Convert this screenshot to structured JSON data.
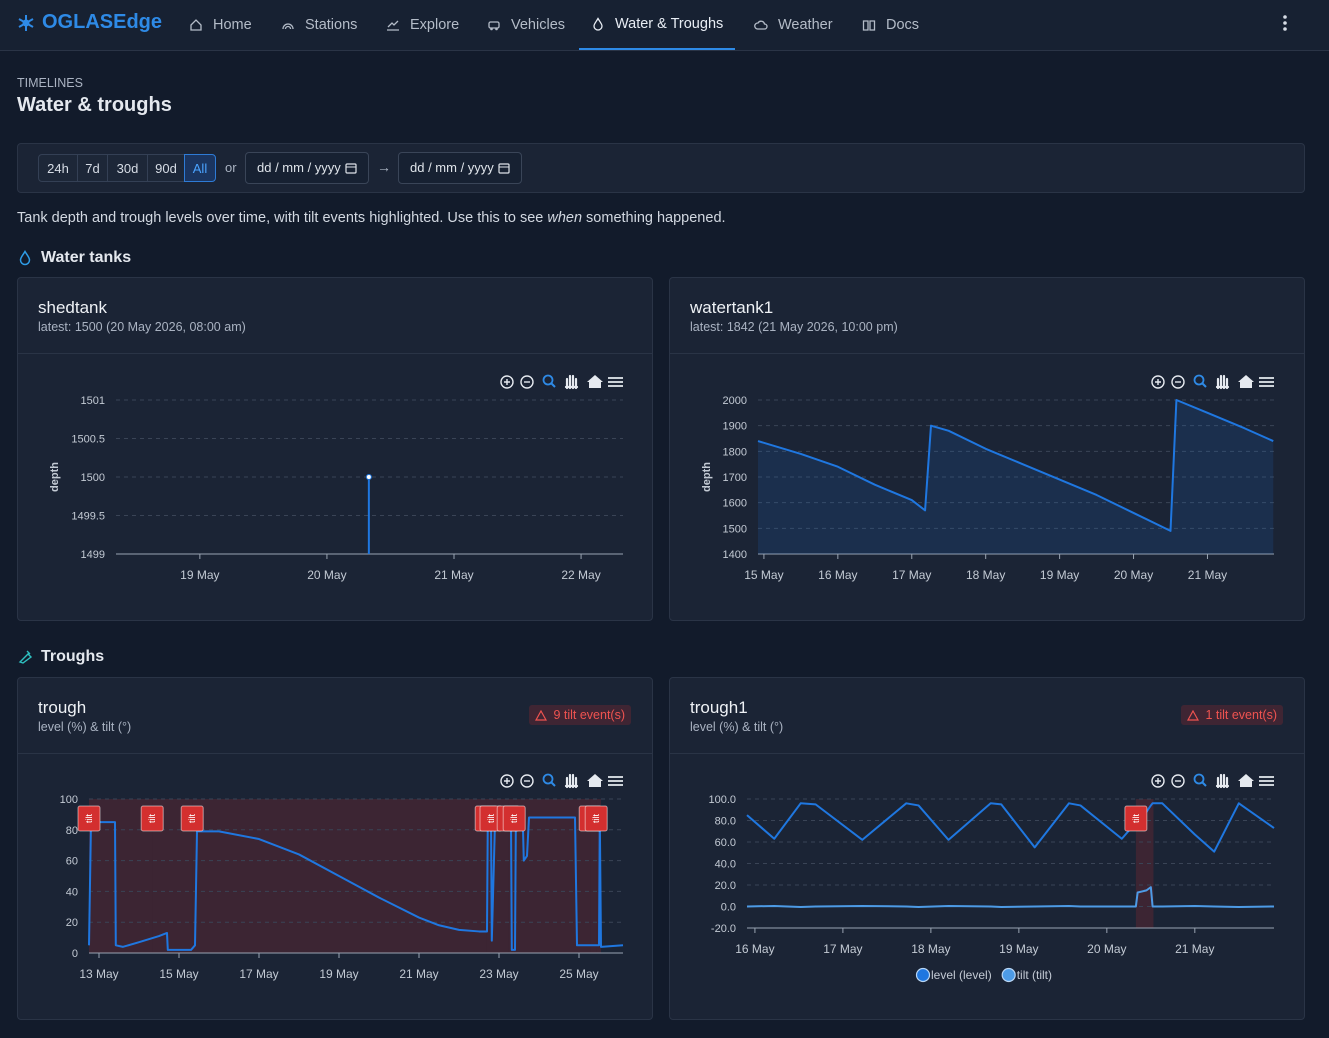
{
  "nav": {
    "brand": "OGLASEdge",
    "items": [
      "Home",
      "Stations",
      "Explore",
      "Vehicles",
      "Water & Troughs",
      "Weather",
      "Docs"
    ]
  },
  "header": {
    "eyebrow": "TIMELINES",
    "title": "Water & troughs"
  },
  "filters": {
    "ranges": [
      "24h",
      "7d",
      "30d",
      "90d",
      "All"
    ],
    "or": "or",
    "date_placeholder": "dd / mm / yyyy",
    "arrow": "→"
  },
  "description": {
    "before": "Tank depth and trough levels over time, with tilt events highlighted. Use this to see ",
    "emphasis": "when",
    "after": " something happened."
  },
  "sections": {
    "tanks": "Water tanks",
    "troughs": "Troughs"
  },
  "chart_data": [
    {
      "type": "area",
      "title": "shedtank",
      "subtitle": "latest: 1500 (20 May 2026, 08:00 am)",
      "y_label": "depth",
      "color": "#1f77e0",
      "markers": true,
      "grid": true,
      "x": [
        20.33
      ],
      "values": [
        1500
      ],
      "xlim": [
        18.34,
        22.33
      ],
      "xticks": [
        {
          "value": 19,
          "label": "19 May"
        },
        {
          "value": 20,
          "label": "20 May"
        },
        {
          "value": 21,
          "label": "21 May"
        },
        {
          "value": 22,
          "label": "22 May"
        }
      ],
      "ylim": [
        1499,
        1501
      ],
      "yticks": [
        1499,
        1499.5,
        1500,
        1500.5,
        1501
      ]
    },
    {
      "type": "area",
      "title": "watertank1",
      "subtitle": "latest: 1842 (21 May 2026, 10:00 pm)",
      "y_label": "depth",
      "color": "#1f77e0",
      "grid": true,
      "x": [
        14.92,
        15.5,
        16,
        16.5,
        17,
        17.18,
        17.26,
        17.5,
        18,
        18.5,
        19,
        19.5,
        20,
        20.5,
        20.58,
        21,
        21.5,
        21.89
      ],
      "values": [
        1840,
        1790,
        1740,
        1670,
        1610,
        1570,
        1900,
        1880,
        1810,
        1750,
        1690,
        1630,
        1560,
        1490,
        2000,
        1950,
        1890,
        1840
      ],
      "xlim": [
        14.92,
        21.9
      ],
      "xticks": [
        {
          "value": 15,
          "label": "15 May"
        },
        {
          "value": 16,
          "label": "16 May"
        },
        {
          "value": 17,
          "label": "17 May"
        },
        {
          "value": 18,
          "label": "18 May"
        },
        {
          "value": 19,
          "label": "19 May"
        },
        {
          "value": 20,
          "label": "20 May"
        },
        {
          "value": 21,
          "label": "21 May"
        }
      ],
      "ylim": [
        1400,
        2000
      ],
      "yticks": [
        1400,
        1500,
        1600,
        1700,
        1800,
        1900,
        2000
      ]
    },
    {
      "type": "line",
      "title": "trough",
      "subtitle": "level (%) & tilt (°)",
      "badge": "9 tilt event(s)",
      "color": "#1f77e0",
      "grid": true,
      "event_label": "tilt",
      "event_color": "#d32f2f",
      "tilt_events": [
        {
          "start": 12.75,
          "end": 14.33
        },
        {
          "start": 14.33,
          "end": 15.33
        },
        {
          "start": 15.33,
          "end": 22.68
        },
        {
          "start": 22.68,
          "end": 22.8
        },
        {
          "start": 22.8,
          "end": 23.23
        },
        {
          "start": 23.23,
          "end": 23.38
        },
        {
          "start": 23.38,
          "end": 25.28
        },
        {
          "start": 25.28,
          "end": 25.43
        },
        {
          "start": 25.43,
          "end": 25.55
        }
      ],
      "x": [
        12.75,
        12.8,
        13.4,
        13.42,
        13.6,
        14,
        14.5,
        14.7,
        14.72,
        15.3,
        15.4,
        15.45,
        16,
        17,
        18,
        19,
        20,
        21,
        21.5,
        22,
        22.5,
        22.7,
        22.72,
        22.8,
        22.82,
        22.9,
        23.3,
        23.32,
        23.4,
        23.42,
        23.6,
        23.62,
        23.7,
        23.75,
        24.9,
        24.95,
        25.5,
        25.52,
        25.55,
        26.1
      ],
      "values": [
        5,
        85,
        85,
        5,
        4,
        7,
        11,
        13,
        2,
        2,
        5,
        79,
        79,
        74,
        64,
        50,
        36,
        23,
        18,
        15,
        14,
        14,
        88,
        88,
        8,
        85,
        85,
        2,
        2,
        80,
        80,
        60,
        63,
        88,
        88,
        5,
        5,
        88,
        4,
        5
      ],
      "xlim": [
        12.75,
        26.1
      ],
      "xticks": [
        {
          "value": 13,
          "label": "13 May"
        },
        {
          "value": 15,
          "label": "15 May"
        },
        {
          "value": 17,
          "label": "17 May"
        },
        {
          "value": 19,
          "label": "19 May"
        },
        {
          "value": 21,
          "label": "21 May"
        },
        {
          "value": 23,
          "label": "23 May"
        },
        {
          "value": 25,
          "label": "25 May"
        }
      ],
      "ylim": [
        0,
        100
      ],
      "yticks": [
        0,
        20,
        40,
        60,
        80,
        100
      ]
    },
    {
      "type": "line",
      "title": "trough1",
      "subtitle": "level (%) & tilt (°)",
      "badge": "1 tilt event(s)",
      "grid": true,
      "legend": "bottom",
      "event_label": "tilt",
      "event_color": "#d32f2f",
      "tilt_events": [
        {
          "start": 20.33,
          "end": 20.53
        }
      ],
      "x": [
        15.91,
        16.22,
        16.52,
        16.69,
        17.22,
        17.72,
        17.86,
        18.2,
        18.68,
        18.8,
        19.18,
        19.57,
        19.7,
        20.17,
        20.33,
        20.35,
        20.45,
        20.5,
        20.52,
        20.63,
        21.0,
        21.22,
        21.5,
        21.9
      ],
      "series": [
        {
          "name": "level (level)",
          "color": "#1f77e0",
          "values": [
            85,
            63,
            96,
            95,
            62,
            96,
            94,
            62,
            96,
            95,
            55,
            96,
            94,
            63,
            78,
            80,
            88,
            94,
            96,
            96,
            67,
            51,
            96,
            73
          ]
        },
        {
          "name": "tilt (tilt)",
          "color": "#4d9be6",
          "values": [
            0,
            0.5,
            -0.5,
            0,
            0.5,
            0,
            -0.5,
            0.5,
            0,
            -0.5,
            0,
            0.5,
            0,
            0,
            0,
            13,
            15,
            18,
            0,
            0,
            0.5,
            0,
            -0.5,
            0
          ]
        }
      ],
      "xlim": [
        15.91,
        21.9
      ],
      "xticks": [
        {
          "value": 16,
          "label": "16 May"
        },
        {
          "value": 17,
          "label": "17 May"
        },
        {
          "value": 18,
          "label": "18 May"
        },
        {
          "value": 19,
          "label": "19 May"
        },
        {
          "value": 20,
          "label": "20 May"
        },
        {
          "value": 21,
          "label": "21 May"
        }
      ],
      "ylim": [
        -20,
        100
      ],
      "yticks": [
        {
          "value": -20,
          "label": "-20.0"
        },
        {
          "value": 0,
          "label": "0.0"
        },
        {
          "value": 20,
          "label": "20.0"
        },
        {
          "value": 40,
          "label": "40.0"
        },
        {
          "value": 60,
          "label": "60.0"
        },
        {
          "value": 80,
          "label": "80.0"
        },
        {
          "value": 100,
          "label": "100.0"
        }
      ]
    }
  ]
}
